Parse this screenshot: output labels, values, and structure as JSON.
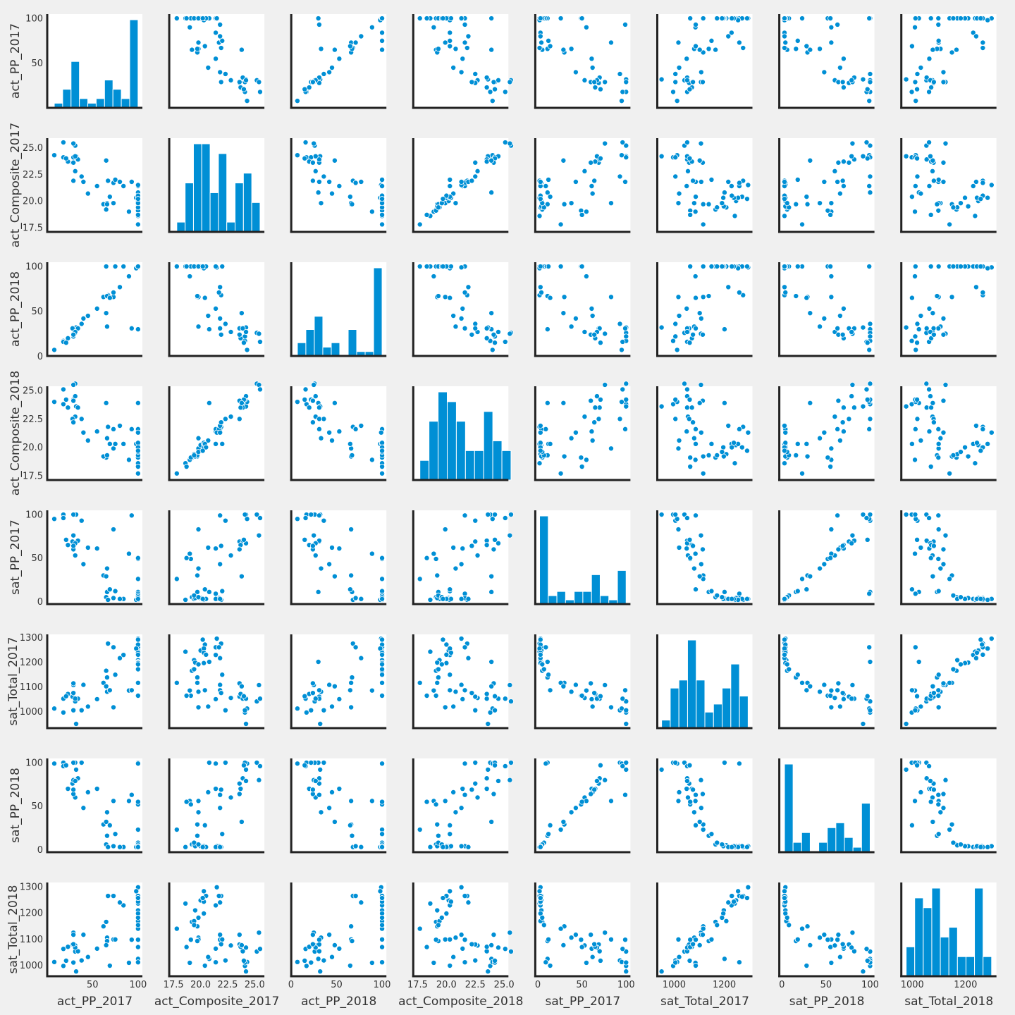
{
  "chart_data": {
    "type": "scatter",
    "matrix": "pairplot",
    "variables": [
      {
        "name": "act_PP_2017",
        "label": "act_PP_2017",
        "ticks": [
          50,
          100
        ],
        "lim": [
          5,
          100
        ]
      },
      {
        "name": "act_Composite_2017",
        "label": "act_Composite_2017",
        "ticks": [
          17.5,
          20.0,
          22.5,
          25.0
        ],
        "tickLabels": [
          "17.5",
          "20.0",
          "22.5",
          "25.0"
        ],
        "lim": [
          17.5,
          25.5
        ]
      },
      {
        "name": "act_PP_2018",
        "label": "act_PP_2018",
        "ticks": [
          0,
          50,
          100
        ],
        "lim": [
          5,
          100
        ]
      },
      {
        "name": "act_Composite_2018",
        "label": "act_Composite_2018",
        "ticks": [
          17.5,
          20.0,
          22.5,
          25.0
        ],
        "tickLabels": [
          "17.5",
          "20.0",
          "22.5",
          "25.0"
        ],
        "lim": [
          17.5,
          25.0
        ]
      },
      {
        "name": "sat_PP_2017",
        "label": "sat_PP_2017",
        "ticks": [
          0,
          50,
          100
        ],
        "lim": [
          2,
          100
        ]
      },
      {
        "name": "sat_Total_2017",
        "label": "sat_Total_2017",
        "ticks": [
          1000,
          1100,
          1200,
          1300
        ],
        "xticks": [
          1000,
          1200
        ],
        "lim": [
          950,
          1295
        ]
      },
      {
        "name": "sat_PP_2018",
        "label": "sat_PP_2018",
        "ticks": [
          0,
          50,
          100
        ],
        "lim": [
          2,
          100
        ]
      },
      {
        "name": "sat_Total_2018",
        "label": "sat_Total_2018",
        "ticks": [
          1000,
          1100,
          1200,
          1300
        ],
        "xticks": [
          1000,
          1200
        ],
        "lim": [
          975,
          1300
        ]
      }
    ],
    "records": [
      [
        65,
        19.2,
        100,
        19.1,
        5,
        1165,
        6,
        1166
      ],
      [
        66,
        19.8,
        33,
        20.8,
        38,
        1080,
        43,
        1106
      ],
      [
        62,
        19.7,
        66,
        19.2,
        30,
        1116,
        29,
        1149
      ],
      [
        100,
        19.4,
        100,
        19.4,
        3,
        1208,
        5,
        1169
      ],
      [
        31,
        22.8,
        27,
        22.7,
        53,
        1055,
        60,
        1076
      ],
      [
        100,
        20.8,
        30,
        23.9,
        11,
        1201,
        100,
        1025
      ],
      [
        31,
        25.2,
        26,
        25.6,
        100,
        1041,
        100,
        1053
      ],
      [
        18,
        24.1,
        17,
        23.8,
        100,
        996,
        100,
        998
      ],
      [
        32,
        24.2,
        32,
        23.6,
        100,
        950,
        92,
        977
      ],
      [
        73,
        19.8,
        66,
        19.9,
        83,
        1017,
        56,
        1099
      ],
      [
        55,
        21.4,
        53,
        21.4,
        61,
        1050,
        70,
        1064
      ],
      [
        90,
        19.0,
        89,
        18.9,
        55,
        1085,
        56,
        1010
      ],
      [
        38,
        22.3,
        36,
        22.5,
        93,
        1005,
        100,
        1019
      ],
      [
        100,
        21.4,
        100,
        21.6,
        9,
        1260,
        99,
        1012
      ],
      [
        93,
        21.8,
        31,
        21.6,
        99,
        1086,
        63,
        1098
      ],
      [
        67,
        21.9,
        68,
        21.8,
        2,
        1275,
        3,
        1265
      ],
      [
        73,
        21.7,
        71,
        21.6,
        4,
        1260,
        4,
        1265
      ],
      [
        100,
        20.0,
        100,
        20.2,
        4,
        1247,
        4,
        1248
      ],
      [
        100,
        19.5,
        100,
        19.2,
        4,
        1198,
        4,
        1210
      ],
      [
        8,
        24.3,
        7,
        24.0,
        95,
        1012,
        99,
        1013
      ],
      [
        28,
        23.6,
        31,
        22.5,
        69,
        1060,
        76,
        1080
      ],
      [
        29,
        25.4,
        25,
        25.5,
        76,
        1107,
        80,
        1125
      ],
      [
        29,
        24.1,
        22,
        24.2,
        100,
        1005,
        100,
        1011
      ],
      [
        100,
        21.5,
        99,
        21.3,
        3,
        1295,
        4,
        1298
      ],
      [
        100,
        18.6,
        100,
        18.6,
        2,
        1242,
        3,
        1236
      ],
      [
        100,
        20.4,
        100,
        20.0,
        3,
        1271,
        4,
        1262
      ],
      [
        100,
        20.3,
        100,
        20.0,
        3,
        1196,
        4,
        1198
      ],
      [
        84,
        21.4,
        100,
        20.3,
        3,
        1229,
        3,
        1229
      ],
      [
        100,
        17.8,
        100,
        17.7,
        26,
        1116,
        23,
        1140
      ],
      [
        18,
        25.5,
        16,
        25.1,
        96,
        1052,
        96,
        1063
      ],
      [
        34,
        23.9,
        31,
        23.5,
        70,
        1052,
        82,
        1054
      ],
      [
        66,
        19.7,
        67,
        19.3,
        11,
        1138,
        16,
        1093
      ],
      [
        31,
        24.2,
        27,
        24.5,
        67,
        1052,
        79,
        1068
      ],
      [
        100,
        19.1,
        100,
        19.1,
        49,
        1064,
        52,
        1098
      ],
      [
        98,
        20.3,
        98,
        20.3,
        2,
        1255,
        3,
        1283
      ],
      [
        75,
        22.0,
        100,
        20.3,
        12,
        1149,
        18,
        1099
      ],
      [
        100,
        19.4,
        100,
        19.3,
        7,
        1171,
        8,
        1154
      ],
      [
        40,
        21.8,
        42,
        21.3,
        43,
        1108,
        48,
        1117
      ],
      [
        23,
        23.7,
        20,
        23.5,
        65,
        1071,
        70,
        1071
      ],
      [
        21,
        24.0,
        15,
        24.2,
        71,
        1062,
        97,
        1018
      ],
      [
        100,
        18.7,
        100,
        18.3,
        50,
        1064,
        55,
        1070
      ],
      [
        80,
        21.8,
        77,
        21.9,
        3,
        1216,
        3,
        1240
      ],
      [
        100,
        19.8,
        100,
        19.6,
        5,
        1191,
        6,
        1182
      ],
      [
        45,
        20.7,
        45,
        20.6,
        62,
        1020,
        66,
        1032
      ],
      [
        100,
        20.3,
        100,
        20.4,
        3,
        1238,
        4,
        1243
      ],
      [
        29,
        23.6,
        24,
        24.1,
        60,
        1114,
        64,
        1117
      ],
      [
        65,
        23.8,
        48,
        23.9,
        29,
        1102,
        32,
        1077
      ],
      [
        29,
        21.9,
        24,
        22.2,
        64,
        1075,
        69,
        1081
      ],
      [
        69,
        20.4,
        65,
        20.3,
        14,
        1086,
        28,
        999
      ],
      [
        100,
        20.5,
        100,
        20.0,
        3,
        1230,
        3,
        1265
      ],
      [
        100,
        20.2,
        100,
        19.7,
        3,
        1291,
        3,
        1257
      ]
    ]
  }
}
